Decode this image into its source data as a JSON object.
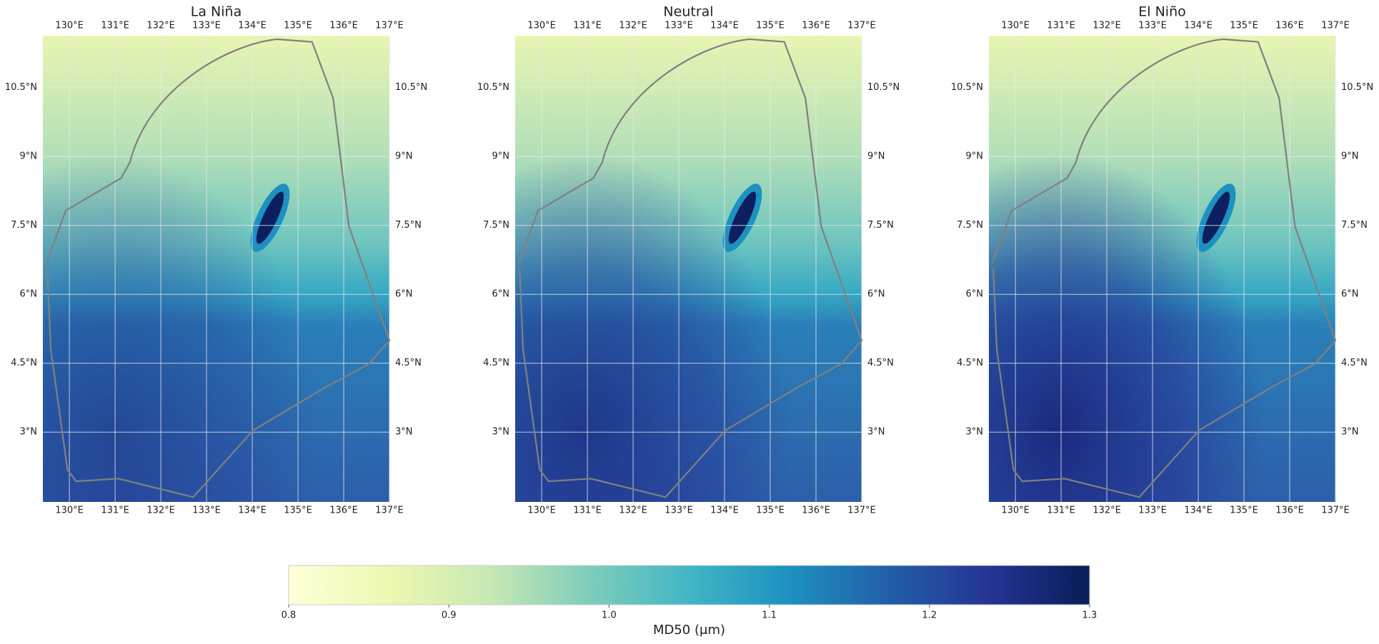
{
  "maps": [
    {
      "title": "La Niña"
    },
    {
      "title": "Neutral"
    },
    {
      "title": "El Niño"
    }
  ],
  "lonlim": [
    129.42,
    137
  ],
  "latlim": [
    1.48,
    11.63
  ],
  "lon_ticks": [
    {
      "value": 130,
      "label": "130°E"
    },
    {
      "value": 131,
      "label": "131°E"
    },
    {
      "value": 132,
      "label": "132°E"
    },
    {
      "value": 133,
      "label": "133°E"
    },
    {
      "value": 134,
      "label": "134°E"
    },
    {
      "value": 135,
      "label": "135°E"
    },
    {
      "value": 136,
      "label": "136°E"
    },
    {
      "value": 137,
      "label": "137°E"
    }
  ],
  "lat_ticks": [
    {
      "value": 3,
      "label": "3°N"
    },
    {
      "value": 4.5,
      "label": "4.5°N"
    },
    {
      "value": 6,
      "label": "6°N"
    },
    {
      "value": 7.5,
      "label": "7.5°N"
    },
    {
      "value": 9,
      "label": "9°N"
    },
    {
      "value": 10.5,
      "label": "10.5°N"
    }
  ],
  "colorbar": {
    "label": "MD50 (μm)",
    "lim": [
      0.8,
      1.3
    ],
    "ticks": [
      0.8,
      0.9,
      {
        "value": 1,
        "label": "1.0"
      },
      1.1,
      1.2,
      1.3
    ],
    "colormap": [
      "#ffffd9",
      "#edf8b1",
      "#c7e9b4",
      "#7fcdbb",
      "#41b6c4",
      "#1d91c0",
      "#225ea8",
      "#253494",
      "#081d58"
    ]
  }
}
